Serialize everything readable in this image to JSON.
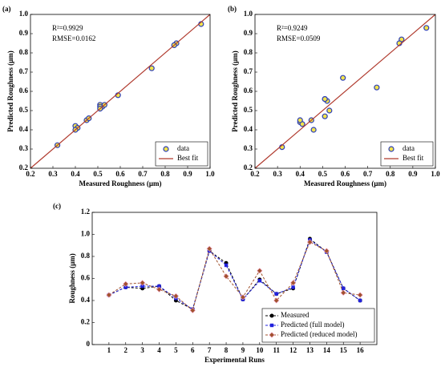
{
  "chart_data": [
    {
      "type": "scatter",
      "panel": "(a)",
      "xlabel": "Measured Roughness (μm)",
      "ylabel": "Predicted Roughness (μm)",
      "annotations": [
        "R²=0.9929",
        "RMSE=0.0162"
      ],
      "xlim": [
        0.2,
        1.0
      ],
      "ylim": [
        0.2,
        1.0
      ],
      "xticks": [
        0.2,
        0.3,
        0.4,
        0.5,
        0.6,
        0.7,
        0.8,
        0.9,
        {
          "value": 1,
          "label": "1.0"
        }
      ],
      "yticks": [
        0.2,
        0.3,
        0.4,
        0.5,
        0.6,
        0.7,
        0.8,
        0.9,
        {
          "value": 1,
          "label": "1.0"
        }
      ],
      "legend": "lower right",
      "series": [
        {
          "name": "data",
          "kind": "points",
          "color": "#f2e34c",
          "edgecolor": "#2c3fb8",
          "x": [
            0.45,
            0.52,
            0.51,
            0.53,
            0.4,
            0.32,
            0.85,
            0.74,
            0.41,
            0.59,
            0.46,
            0.51,
            0.96,
            0.84,
            0.51,
            0.4
          ],
          "values": [
            0.45,
            0.52,
            0.53,
            0.53,
            0.42,
            0.32,
            0.85,
            0.72,
            0.41,
            0.58,
            0.46,
            0.52,
            0.95,
            0.84,
            0.51,
            0.4
          ]
        },
        {
          "name": "Best fit",
          "kind": "line",
          "color": "#b03a2e",
          "x": [
            0.2,
            1.0
          ],
          "values": [
            0.2,
            1.0
          ]
        }
      ]
    },
    {
      "type": "scatter",
      "panel": "(b)",
      "xlabel": "Measured Roughness (μm)",
      "ylabel": "Predicted Roughness (μm)",
      "annotations": [
        "R²=0.9249",
        "RMSE=0.0509"
      ],
      "xlim": [
        0.2,
        1.0
      ],
      "ylim": [
        0.2,
        1.0
      ],
      "xticks": [
        0.2,
        0.3,
        0.4,
        0.5,
        0.6,
        0.7,
        0.8,
        0.9,
        {
          "value": 1,
          "label": "1.0"
        }
      ],
      "yticks": [
        0.2,
        0.3,
        0.4,
        0.5,
        0.6,
        0.7,
        0.8,
        0.9,
        {
          "value": 1,
          "label": "1.0"
        }
      ],
      "legend": "lower right",
      "series": [
        {
          "name": "data",
          "kind": "points",
          "color": "#f2e34c",
          "edgecolor": "#2c3fb8",
          "x": [
            0.45,
            0.52,
            0.51,
            0.53,
            0.4,
            0.32,
            0.85,
            0.74,
            0.41,
            0.59,
            0.46,
            0.51,
            0.96,
            0.84,
            0.51,
            0.4
          ],
          "values": [
            0.45,
            0.55,
            0.56,
            0.5,
            0.44,
            0.31,
            0.87,
            0.62,
            0.43,
            0.67,
            0.4,
            0.56,
            0.93,
            0.85,
            0.47,
            0.45
          ]
        },
        {
          "name": "Best fit",
          "kind": "line",
          "color": "#b03a2e",
          "x": [
            0.2,
            1.0
          ],
          "values": [
            0.2,
            1.0
          ]
        }
      ]
    },
    {
      "type": "line",
      "panel": "(c)",
      "xlabel": "Experimental Runs",
      "ylabel": "Roughness (μm)",
      "categories": [
        "1",
        "2",
        "3",
        "4",
        "5",
        "6",
        "7",
        "8",
        "9",
        "10",
        "11",
        "12",
        "13",
        "14",
        "15",
        "16"
      ],
      "ylim": [
        0,
        1.2
      ],
      "yticks": [
        0,
        0.2,
        0.4,
        0.6,
        0.8,
        {
          "value": 1,
          "label": "1.0"
        },
        1.2
      ],
      "legend": "lower right",
      "series": [
        {
          "name": "Measured",
          "color": "#000000",
          "marker": "circle",
          "values": [
            0.45,
            0.52,
            0.51,
            0.53,
            0.4,
            0.32,
            0.85,
            0.74,
            0.41,
            0.59,
            0.46,
            0.51,
            0.96,
            0.84,
            0.51,
            0.4
          ]
        },
        {
          "name": "Predicted (full model)",
          "color": "#2222dd",
          "marker": "square",
          "values": [
            0.45,
            0.52,
            0.53,
            0.53,
            0.42,
            0.32,
            0.85,
            0.72,
            0.41,
            0.58,
            0.46,
            0.52,
            0.95,
            0.84,
            0.51,
            0.4
          ]
        },
        {
          "name": "Predicted (reduced model)",
          "color": "#a0522d",
          "marker": "diamond",
          "values": [
            0.45,
            0.55,
            0.56,
            0.5,
            0.44,
            0.31,
            0.87,
            0.62,
            0.43,
            0.67,
            0.4,
            0.56,
            0.93,
            0.85,
            0.47,
            0.45
          ]
        }
      ]
    }
  ]
}
